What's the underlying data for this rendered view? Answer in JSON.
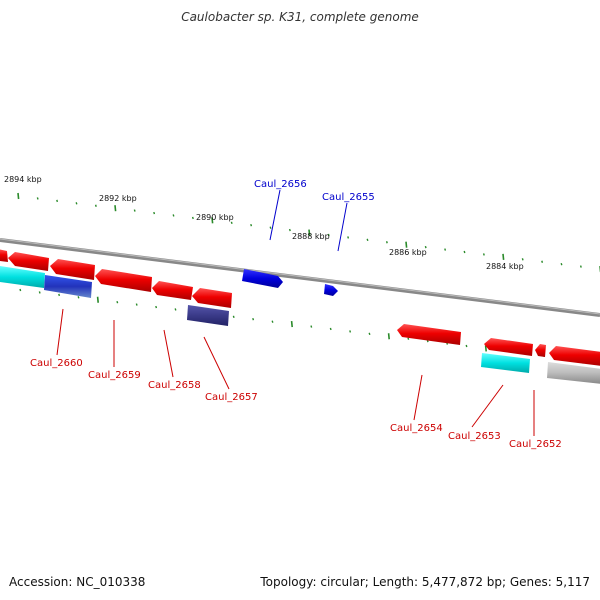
{
  "title": "Caulobacter sp. K31, complete genome",
  "footer": {
    "accession": "Accession: NC_010338",
    "summary": "Topology: circular; Length: 5,477,872 bp; Genes: 5,117"
  },
  "colors": {
    "red": "#ee0000",
    "blue": "#0000dd",
    "cyan": "#00dddd",
    "navy": "#3a3a88",
    "gray": "#bbbbbb",
    "backbone": "#888888",
    "tick": "#2a8a2a",
    "label_red": "#cc0000",
    "label_blue": "#0000cc"
  },
  "kbp_labels": [
    "2894 kbp",
    "2892 kbp",
    "2890 kbp",
    "2888 kbp",
    "2886 kbp",
    "2884 kbp"
  ],
  "gene_labels": {
    "top": [
      "Caul_2656",
      "Caul_2655"
    ],
    "bottom": [
      "Caul_2660",
      "Caul_2659",
      "Caul_2658",
      "Caul_2657",
      "Caul_2654",
      "Caul_2653",
      "Caul_2652"
    ]
  }
}
